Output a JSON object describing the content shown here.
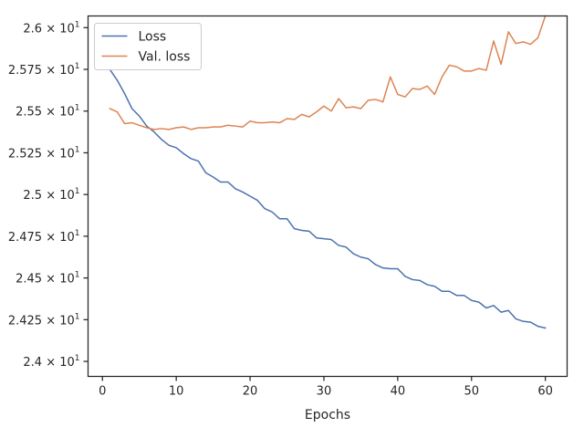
{
  "chart_data": {
    "type": "line",
    "title": "",
    "xlabel": "Epochs",
    "ylabel": "",
    "xlim": [
      -1.95,
      62.95
    ],
    "ylim": [
      23.91,
      26.07
    ],
    "y_scale": "linear",
    "grid": false,
    "legend_position": "top-left",
    "x_ticks": [
      0,
      10,
      20,
      30,
      40,
      50,
      60
    ],
    "x_tick_labels": [
      "0",
      "10",
      "20",
      "30",
      "40",
      "50",
      "60"
    ],
    "y_ticks": [
      24.0,
      24.25,
      24.5,
      24.75,
      25.0,
      25.25,
      25.5,
      25.75,
      26.0
    ],
    "y_tick_labels": [
      {
        "base": "2.4 × 10",
        "exp": "1"
      },
      {
        "base": "2.425 × 10",
        "exp": "1"
      },
      {
        "base": "2.45 × 10",
        "exp": "1"
      },
      {
        "base": "2.475 × 10",
        "exp": "1"
      },
      {
        "base": "2.5 × 10",
        "exp": "1"
      },
      {
        "base": "2.525 × 10",
        "exp": "1"
      },
      {
        "base": "2.55 × 10",
        "exp": "1"
      },
      {
        "base": "2.575 × 10",
        "exp": "1"
      },
      {
        "base": "2.6 × 10",
        "exp": "1"
      }
    ],
    "x": [
      1,
      2,
      3,
      4,
      5,
      6,
      7,
      8,
      9,
      10,
      11,
      12,
      13,
      14,
      15,
      16,
      17,
      18,
      19,
      20,
      21,
      22,
      23,
      24,
      25,
      26,
      27,
      28,
      29,
      30,
      31,
      32,
      33,
      34,
      35,
      36,
      37,
      38,
      39,
      40,
      41,
      42,
      43,
      44,
      45,
      46,
      47,
      48,
      49,
      50,
      51,
      52,
      53,
      54,
      55,
      56,
      57,
      58,
      59,
      60
    ],
    "series": [
      {
        "name": "Loss",
        "color": "#4c72b0",
        "values": [
          25.75,
          25.685,
          25.605,
          25.515,
          25.47,
          25.41,
          25.375,
          25.33,
          25.295,
          25.28,
          25.245,
          25.215,
          25.2,
          25.13,
          25.105,
          25.075,
          25.075,
          25.035,
          25.015,
          24.99,
          24.965,
          24.915,
          24.895,
          24.855,
          24.855,
          24.795,
          24.785,
          24.78,
          24.74,
          24.735,
          24.73,
          24.695,
          24.685,
          24.645,
          24.625,
          24.615,
          24.58,
          24.56,
          24.555,
          24.555,
          24.51,
          24.49,
          24.485,
          24.46,
          24.45,
          24.42,
          24.42,
          24.395,
          24.395,
          24.365,
          24.355,
          24.32,
          24.335,
          24.295,
          24.305,
          24.255,
          24.24,
          24.235,
          24.21,
          24.2
        ]
      },
      {
        "name": "Val. loss",
        "color": "#dd8452",
        "values": [
          25.515,
          25.495,
          25.425,
          25.43,
          25.415,
          25.4,
          25.39,
          25.395,
          25.39,
          25.4,
          25.405,
          25.39,
          25.4,
          25.4,
          25.405,
          25.405,
          25.415,
          25.41,
          25.405,
          25.44,
          25.43,
          25.43,
          25.435,
          25.43,
          25.455,
          25.45,
          25.48,
          25.465,
          25.495,
          25.53,
          25.5,
          25.575,
          25.52,
          25.525,
          25.515,
          25.565,
          25.57,
          25.555,
          25.705,
          25.6,
          25.585,
          25.635,
          25.63,
          25.65,
          25.6,
          25.705,
          25.775,
          25.765,
          25.74,
          25.74,
          25.755,
          25.745,
          25.92,
          25.78,
          25.975,
          25.905,
          25.915,
          25.9,
          25.94,
          26.07
        ]
      }
    ]
  }
}
